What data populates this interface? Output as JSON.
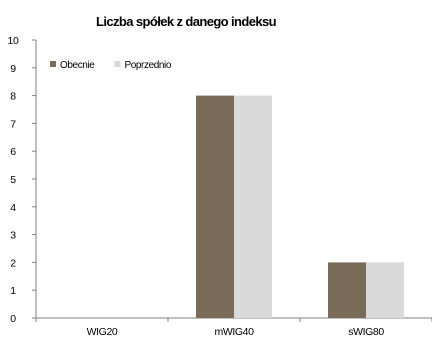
{
  "chart_data": {
    "type": "bar",
    "title": "Liczba spółek z danego indeksu",
    "xlabel": "",
    "ylabel": "",
    "categories": [
      "WIG20",
      "mWIG40",
      "sWIG80"
    ],
    "series": [
      {
        "name": "Obecnie",
        "values": [
          0,
          8,
          2
        ],
        "color": "#7a6b58"
      },
      {
        "name": "Poprzednio",
        "values": [
          0,
          8,
          2
        ],
        "color": "#d9d9d9"
      }
    ],
    "ylim": [
      0,
      10
    ],
    "yticks": [
      0,
      1,
      2,
      3,
      4,
      5,
      6,
      7,
      8,
      9,
      10
    ],
    "grid": false,
    "legend": "top-left"
  }
}
